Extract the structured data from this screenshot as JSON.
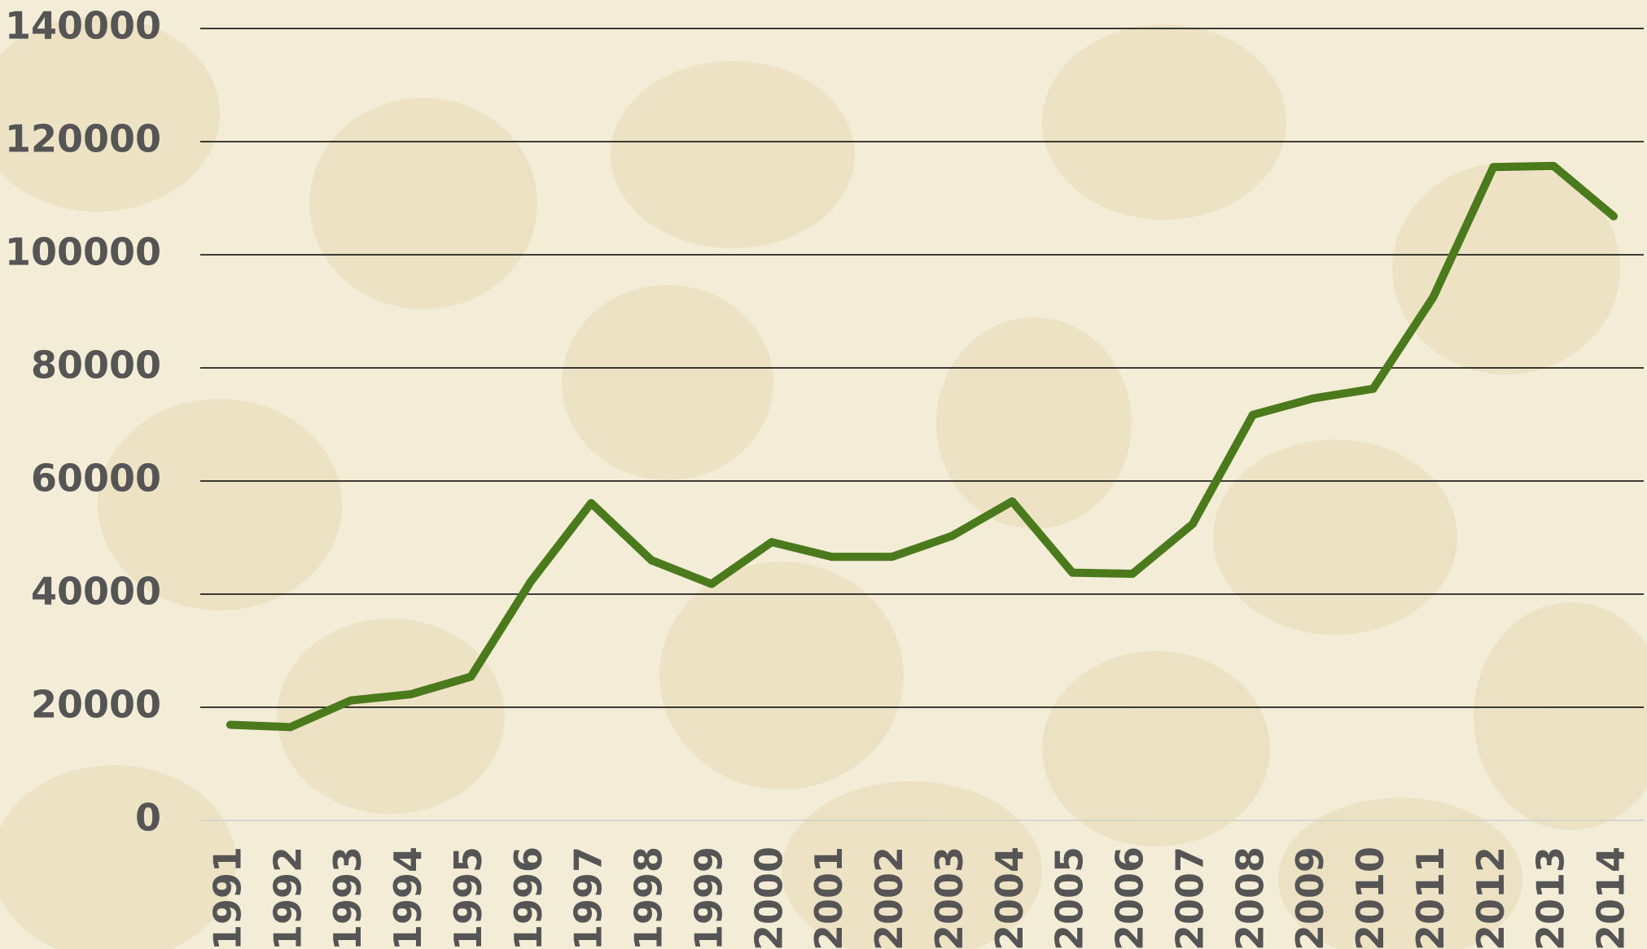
{
  "chart_data": {
    "type": "line",
    "categories": [
      "1991",
      "1992",
      "1993",
      "1994",
      "1995",
      "1996",
      "1997",
      "1998",
      "1999",
      "2000",
      "2001",
      "2002",
      "2003",
      "2004",
      "2005",
      "2006",
      "2007",
      "2008",
      "2009",
      "2010",
      "2011",
      "2012",
      "2013",
      "2014"
    ],
    "series": [
      {
        "color": "#4a7a1c",
        "values": [
          16900,
          16500,
          21200,
          22300,
          25400,
          42300,
          56100,
          46000,
          41800,
          49200,
          46600,
          46600,
          50300,
          56400,
          43800,
          43600,
          52400,
          71700,
          74600,
          76300,
          92500,
          115500,
          115700,
          106800
        ]
      }
    ],
    "ylim": [
      0,
      140000
    ],
    "yticks": [
      0,
      20000,
      40000,
      60000,
      80000,
      100000,
      120000,
      140000
    ],
    "grid": true
  }
}
